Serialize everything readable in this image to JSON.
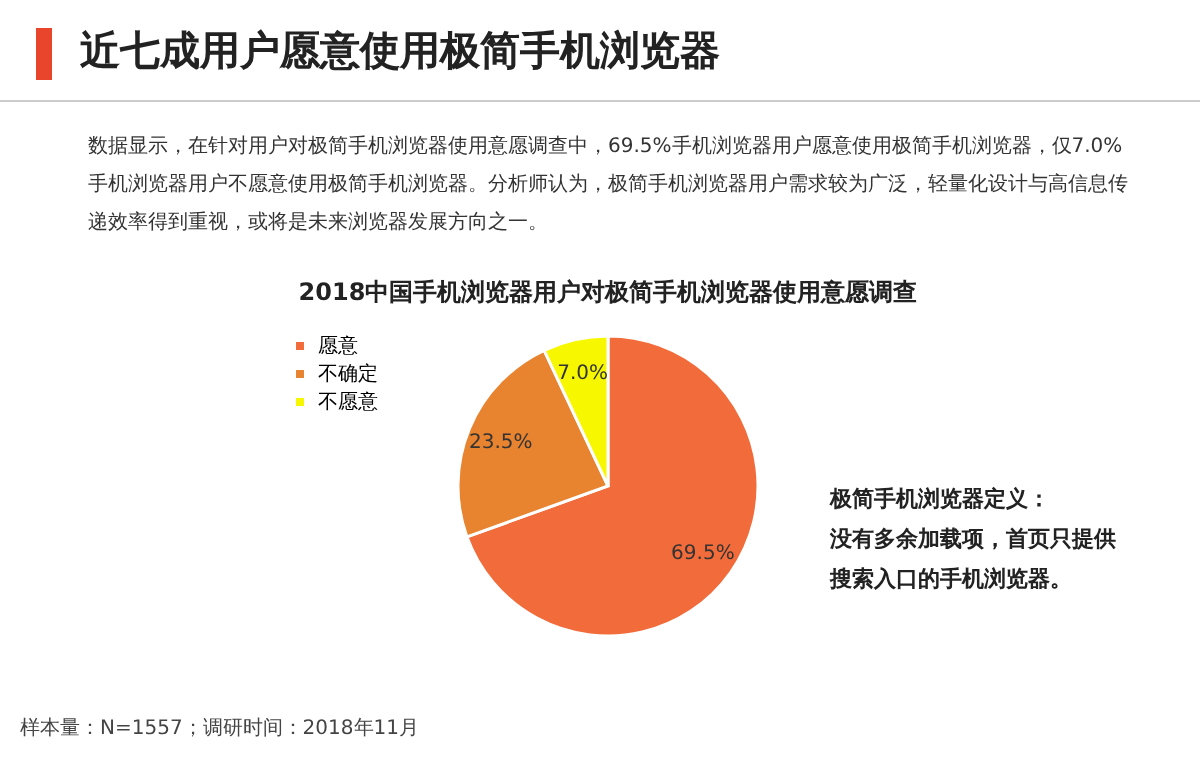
{
  "chart_data": {
    "type": "pie",
    "title": "2018中国手机浏览器用户对极简手机浏览器使用意愿调查",
    "subtitle": "近七成用户愿意使用极简手机浏览器",
    "annotations": [
      "数据显示，在针对用户对极简手机浏览器使用意愿调查中，69.5%手机浏览器用户愿意使用极简手机浏览器，仅7.0%手机浏览器用户不愿意使用极简手机浏览器。分析师认为，极简手机浏览器用户需求较为广泛，轻量化设计与高信息传递效率得到重视，或将是未来浏览器发展方向之一。",
      "极简手机浏览器定义：",
      "没有多余加载项，首页只提供搜索入口的手机浏览器。",
      "样本量：N=1557；调研时间：2018年11月"
    ],
    "categories": [
      "愿意",
      "不确定",
      "不愿意"
    ],
    "values": [
      69.5,
      23.5,
      7.0
    ],
    "colors": [
      "#f26b3a",
      "#e8832f",
      "#f7f700"
    ],
    "value_labels": [
      "69.5%",
      "23.5%",
      "7.0%"
    ],
    "legend": "left"
  }
}
